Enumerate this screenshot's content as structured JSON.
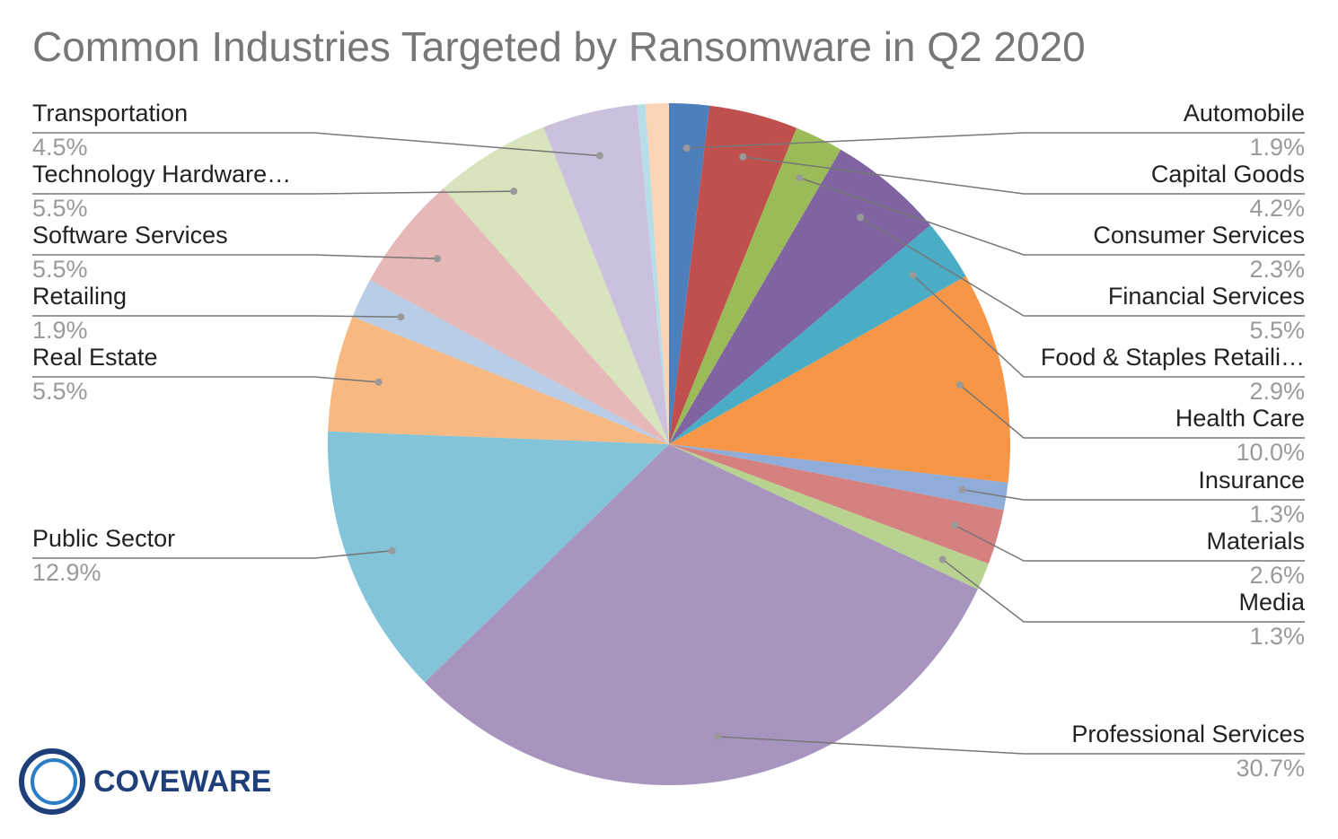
{
  "chart_data": {
    "type": "pie",
    "title": "Common Industries Targeted by Ransomware in Q2 2020",
    "categories": [
      "Automobile",
      "Capital Goods",
      "Consumer Services",
      "Financial Services",
      "Food & Staples Retaili…",
      "Health Care",
      "Insurance",
      "Materials",
      "Media",
      "Professional Services",
      "Public Sector",
      "Real Estate",
      "Retailing",
      "Software Services",
      "Technology Hardware…",
      "Transportation",
      null,
      null
    ],
    "values": [
      1.9,
      4.2,
      2.3,
      5.5,
      2.9,
      10.0,
      1.3,
      2.6,
      1.3,
      30.7,
      12.9,
      5.5,
      1.9,
      5.5,
      5.5,
      4.5,
      0.4,
      1.1
    ],
    "value_labels": [
      "1.9%",
      "4.2%",
      "2.3%",
      "5.5%",
      "2.9%",
      "10.0%",
      "1.3%",
      "2.6%",
      "1.3%",
      "30.7%",
      "12.9%",
      "5.5%",
      "1.9%",
      "5.5%",
      "5.5%",
      "4.5%",
      null,
      null
    ],
    "colors": [
      "#4e7fbd",
      "#c0504d",
      "#9bbb59",
      "#8064a2",
      "#4bacc6",
      "#f79646",
      "#8fadd8",
      "#d48180",
      "#b8d28f",
      "#a795c0",
      "#83c4d8",
      "#f8b881",
      "#b9cde6",
      "#e6b8b7",
      "#d7e4bd",
      "#ccc1dc",
      "#b7dee8",
      "#fbd5b5"
    ]
  },
  "logo": "COVEWARE"
}
